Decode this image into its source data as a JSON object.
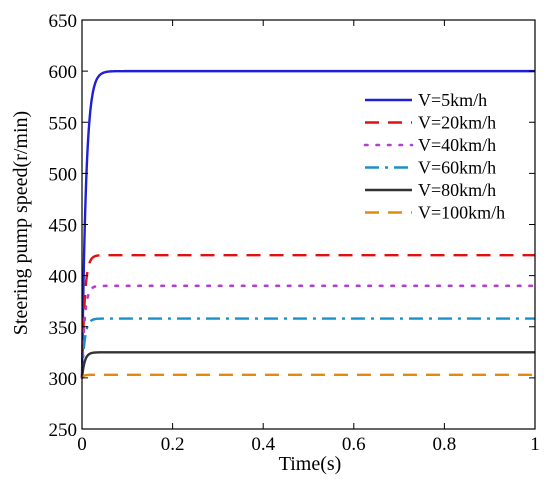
{
  "chart_data": {
    "type": "line",
    "title": "",
    "xlabel": "Time(s)",
    "ylabel": "Steering pump speed(r/min)",
    "xlim": [
      0,
      1
    ],
    "ylim": [
      250,
      650
    ],
    "xticks": [
      0,
      0.2,
      0.4,
      0.6,
      0.8,
      1
    ],
    "xtick_labels": [
      "0",
      "0.2",
      "0.4",
      "0.6",
      "0.8",
      "1"
    ],
    "yticks": [
      250,
      300,
      350,
      400,
      450,
      500,
      550,
      600,
      650
    ],
    "ytick_labels": [
      "250",
      "300",
      "350",
      "400",
      "450",
      "500",
      "550",
      "600",
      "650"
    ],
    "grid": false,
    "legend_position": "right",
    "start_value": 300,
    "series": [
      {
        "name": "V=5km/h",
        "steady": 600,
        "tau": 0.009,
        "color": "#1f1fd6",
        "style": "solid"
      },
      {
        "name": "V=20km/h",
        "steady": 420,
        "tau": 0.006,
        "color": "#e01010",
        "style": "dash"
      },
      {
        "name": "V=40km/h",
        "steady": 390,
        "tau": 0.006,
        "color": "#b040d0",
        "style": "dot"
      },
      {
        "name": "V=60km/h",
        "steady": 358,
        "tau": 0.006,
        "color": "#1a90c8",
        "style": "dashdot"
      },
      {
        "name": "V=80km/h",
        "steady": 325,
        "tau": 0.006,
        "color": "#333333",
        "style": "solid"
      },
      {
        "name": "V=100km/h",
        "steady": 303,
        "tau": 0.004,
        "color": "#e08a10",
        "style": "dash"
      }
    ]
  }
}
